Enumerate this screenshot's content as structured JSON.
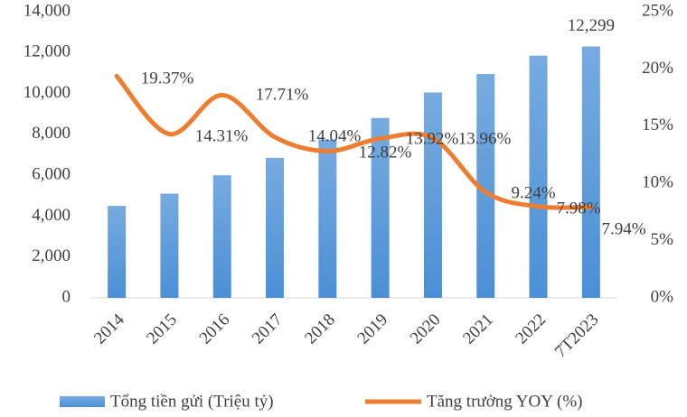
{
  "chart_data": {
    "type": "bar",
    "categories": [
      "2014",
      "2015",
      "2016",
      "2017",
      "2018",
      "2019",
      "2020",
      "2021",
      "2022",
      "7T2023"
    ],
    "series": [
      {
        "name": "Tổng tiền gửi (Triệu tỷ)",
        "color": "#4a8fd6",
        "values": [
          4500,
          5100,
          6000,
          6850,
          7750,
          8800,
          10050,
          10950,
          11850,
          12299
        ],
        "value_labels": [
          null,
          null,
          null,
          null,
          null,
          null,
          null,
          null,
          null,
          "12,299"
        ]
      },
      {
        "name": "Tăng trưởng YOY (%)",
        "color": "#ed7d31",
        "type": "line",
        "axis": "y2",
        "values": [
          19.37,
          14.31,
          17.71,
          14.04,
          12.82,
          13.92,
          13.96,
          9.24,
          7.98,
          7.94
        ],
        "value_labels": [
          "19.37%",
          "14.31%",
          "17.71%",
          "14.04%",
          "12.82%",
          "13.92%",
          "13.96%",
          "9.24%",
          "7.98%",
          "7.94%"
        ]
      }
    ],
    "ylim": [
      0,
      14000
    ],
    "yticks": [
      0,
      {
        "value": 2000,
        "label": "2,000"
      },
      {
        "value": 4000,
        "label": "4,000"
      },
      {
        "value": 6000,
        "label": "6,000"
      },
      {
        "value": 8000,
        "label": "8,000"
      },
      {
        "value": 10000,
        "label": "10,000"
      },
      {
        "value": 12000,
        "label": "12,000"
      },
      {
        "value": 14000,
        "label": "14,000"
      }
    ],
    "y2lim": [
      0,
      25
    ],
    "y2ticks": [
      {
        "value": 0,
        "label": "0%"
      },
      {
        "value": 5,
        "label": "5%"
      },
      {
        "value": 10,
        "label": "10%"
      },
      {
        "value": 15,
        "label": "15%"
      },
      {
        "value": 20,
        "label": "20%"
      },
      {
        "value": 25,
        "label": "25%"
      }
    ],
    "legend": "bottom"
  }
}
